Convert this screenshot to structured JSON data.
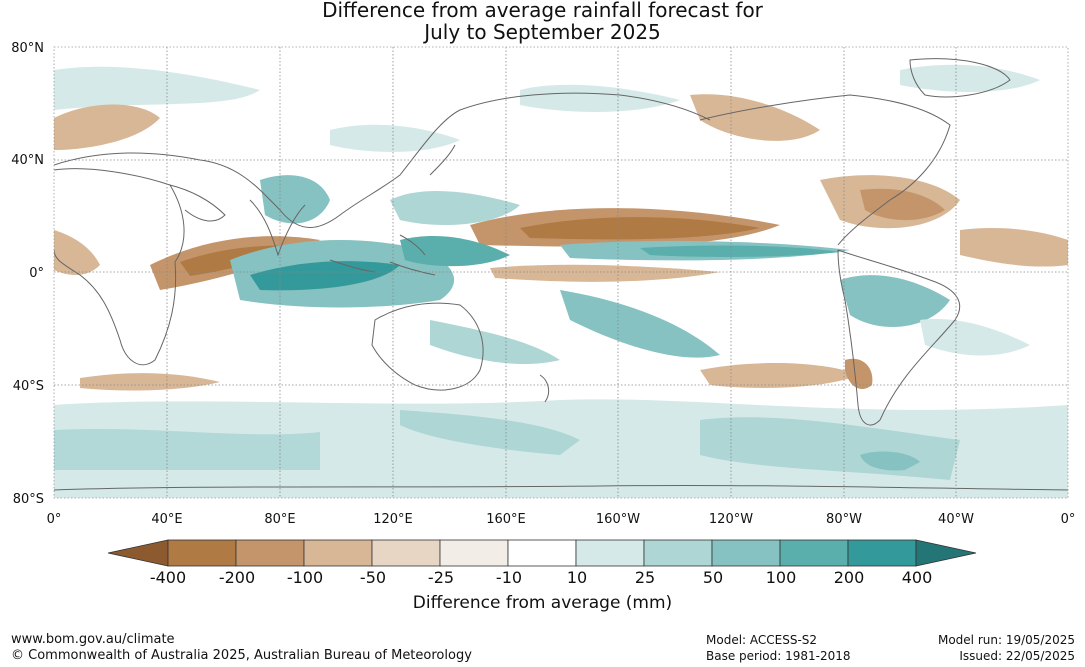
{
  "title": {
    "line1": "Difference from average rainfall forecast for",
    "line2": "July to September 2025"
  },
  "map": {
    "lat_labels": [
      "80°N",
      "40°N",
      "0°",
      "40°S",
      "80°S"
    ],
    "lon_labels": [
      "0°",
      "40°E",
      "80°E",
      "120°E",
      "160°E",
      "160°W",
      "120°W",
      "80°W",
      "40°W",
      "0°"
    ]
  },
  "colorbar": {
    "labels": [
      "-400",
      "-200",
      "-100",
      "-50",
      "-25",
      "-10",
      "10",
      "25",
      "50",
      "100",
      "200",
      "400"
    ],
    "colors": [
      "#8c5a2e",
      "#b07a44",
      "#c4956a",
      "#d8b796",
      "#e8d6c4",
      "#f3ede8",
      "#ffffff",
      "#d5e9e8",
      "#aed6d5",
      "#86c2c1",
      "#5aaeac",
      "#34999a",
      "#247676"
    ],
    "title": "Difference from average (mm)"
  },
  "footer": {
    "website": "www.bom.gov.au/climate",
    "copyright": "© Commonwealth of Australia 2025, Australian Bureau of Meteorology",
    "model": "Model: ACCESS-S2",
    "base_period": "Base period: 1981-2018",
    "model_run": "Model run: 19/05/2025",
    "issued": "Issued: 22/05/2025"
  }
}
